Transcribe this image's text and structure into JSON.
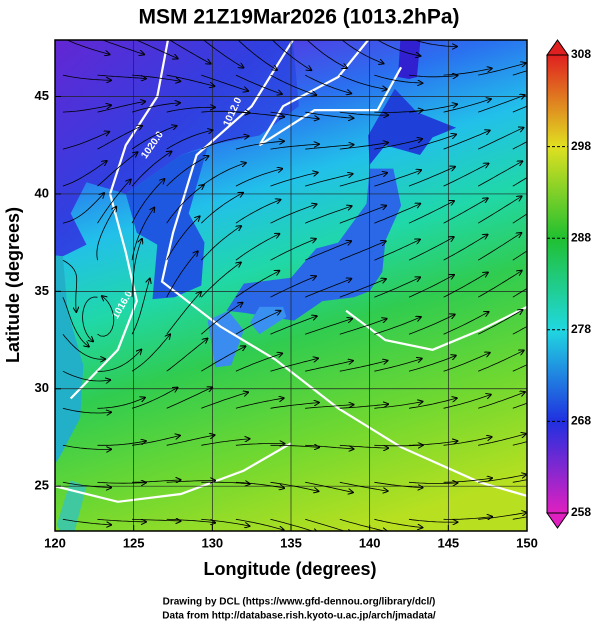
{
  "title": "MSM 21Z19Mar2026 (1013.2hPa)",
  "xlabel": "Longitude (degrees)",
  "ylabel": "Latitude  (degrees)",
  "xlim": [
    120,
    150
  ],
  "xticks": [
    120,
    125,
    130,
    135,
    140,
    145,
    150
  ],
  "ylim": [
    22.7,
    47.9
  ],
  "yticks": [
    25,
    30,
    35,
    40,
    45
  ],
  "grid": true,
  "colorbar": {
    "lim": [
      258,
      308
    ],
    "ticks": [
      258,
      268,
      278,
      288,
      298,
      308
    ],
    "colors": [
      "#e020c0",
      "#2030e0",
      "#20d8e0",
      "#20c030",
      "#e0e020",
      "#e02020"
    ]
  },
  "contour_labels": [
    "1012.0",
    "1020.0",
    "1016.0"
  ],
  "credits": [
    "Drawing by DCL (https://www.gfd-dennou.org/library/dcl/)",
    "Data from http://database.rish.kyoto-u.ac.jp/arch/jmadata/"
  ]
}
